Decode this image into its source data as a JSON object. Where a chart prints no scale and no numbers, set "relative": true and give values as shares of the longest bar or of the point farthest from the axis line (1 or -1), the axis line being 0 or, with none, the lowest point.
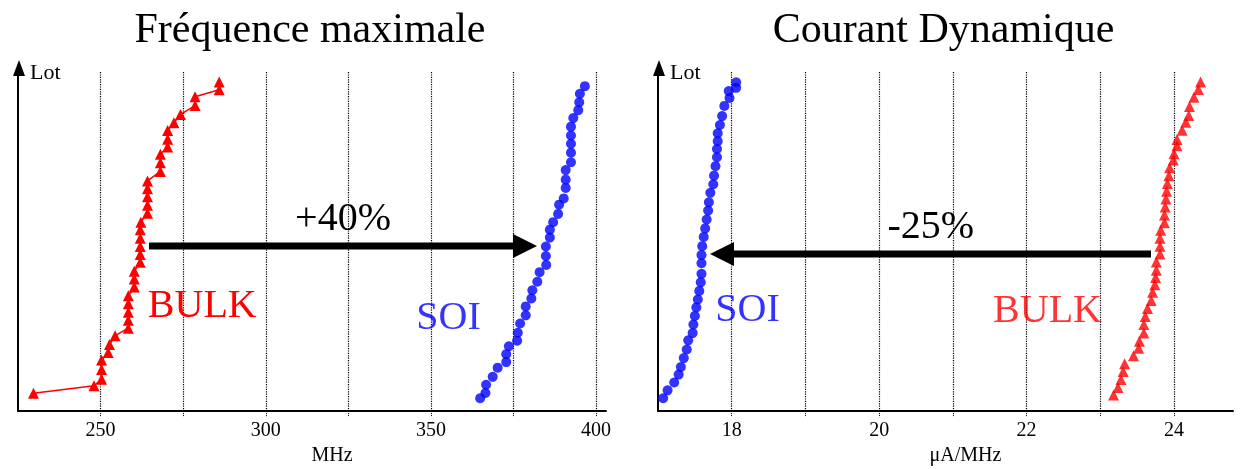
{
  "chart_data": [
    {
      "type": "scatter",
      "title": "Fréquence maximale",
      "xlabel": "MHz",
      "ylabel": "Lot",
      "relative": true,
      "legend": false,
      "grid": "x",
      "annotations": [
        "+40%"
      ],
      "xlim": [
        225,
        403
      ],
      "xticks": [
        250,
        {
          "value": 275,
          "label": null
        },
        300,
        {
          "value": 325,
          "label": null
        },
        350,
        {
          "value": 375,
          "label": null
        },
        400
      ],
      "series": [
        {
          "name": "BULK",
          "type": "line",
          "marker": "triangle",
          "color": "#ff0000",
          "x": [
            229.7,
            248.0,
            250.3,
            250.3,
            250.3,
            252.3,
            252.7,
            254.4,
            258.4,
            258.4,
            258.4,
            258.4,
            258.4,
            260.2,
            260.2,
            260.2,
            262.0,
            262.0,
            262.0,
            262.0,
            262.0,
            262.2,
            264.2,
            264.2,
            264.2,
            264.2,
            264.2,
            268.1,
            268.1,
            268.1,
            270.3,
            270.3,
            270.3,
            272.2,
            274.2,
            278.6,
            278.6,
            285.9,
            285.9
          ],
          "values": [
            0.054,
            0.077,
            0.097,
            0.126,
            0.155,
            0.178,
            0.202,
            0.229,
            0.252,
            0.276,
            0.3,
            0.326,
            0.35,
            0.377,
            0.401,
            0.425,
            0.452,
            0.476,
            0.5,
            0.525,
            0.551,
            0.574,
            0.601,
            0.625,
            0.651,
            0.675,
            0.699,
            0.728,
            0.754,
            0.78,
            0.802,
            0.826,
            0.852,
            0.876,
            0.901,
            0.928,
            0.955,
            0.976,
            1.0
          ]
        },
        {
          "name": "SOI",
          "type": "scatter",
          "marker": "circle",
          "color": "#0000ff",
          "x": [
            364.9,
            366.5,
            366.7,
            368.7,
            370.2,
            372.8,
            372.8,
            373.6,
            376.1,
            376.3,
            377.0,
            378.7,
            378.7,
            380.4,
            380.7,
            382.2,
            382.9,
            384.9,
            384.8,
            384.8,
            386.0,
            386.0,
            387.0,
            388.5,
            388.8,
            390.2,
            390.8,
            390.8,
            390.8,
            392.4,
            392.4,
            392.4,
            392.4,
            392.4,
            393.1,
            394.6,
            394.9,
            395.1,
            396.6
          ],
          "values": [
            0.039,
            0.055,
            0.08,
            0.104,
            0.132,
            0.149,
            0.173,
            0.197,
            0.214,
            0.238,
            0.266,
            0.291,
            0.318,
            0.342,
            0.367,
            0.393,
            0.422,
            0.444,
            0.471,
            0.5,
            0.527,
            0.551,
            0.574,
            0.599,
            0.627,
            0.646,
            0.678,
            0.703,
            0.732,
            0.756,
            0.785,
            0.812,
            0.837,
            0.864,
            0.89,
            0.914,
            0.938,
            0.964,
            0.987
          ]
        }
      ]
    },
    {
      "type": "scatter",
      "title": "Courant Dynamique",
      "xlabel": "μA/MHz",
      "ylabel": "Lot",
      "relative": true,
      "legend": false,
      "grid": "x",
      "annotations": [
        "-25%"
      ],
      "xlim": [
        17,
        24.8
      ],
      "xticks": [
        18,
        {
          "value": 19,
          "label": null
        },
        20,
        {
          "value": 21,
          "label": null
        },
        22,
        {
          "value": 23,
          "label": null
        },
        24
      ],
      "series": [
        {
          "name": "BULK",
          "type": "scatter",
          "marker": "triangle",
          "color": "#ff0000",
          "x": [
            23.18,
            23.24,
            23.28,
            23.31,
            23.33,
            23.45,
            23.52,
            23.53,
            23.59,
            23.59,
            23.61,
            23.64,
            23.69,
            23.71,
            23.74,
            23.75,
            23.76,
            23.76,
            23.81,
            23.81,
            23.81,
            23.82,
            23.87,
            23.87,
            23.88,
            23.89,
            23.9,
            23.91,
            23.93,
            23.94,
            23.99,
            24.0,
            24.04,
            24.04,
            24.11,
            24.16,
            24.2,
            24.21,
            24.27,
            24.33,
            24.36
          ],
          "values": [
            0.049,
            0.072,
            0.096,
            0.12,
            0.144,
            0.168,
            0.191,
            0.212,
            0.237,
            0.263,
            0.287,
            0.312,
            0.336,
            0.361,
            0.384,
            0.406,
            0.428,
            0.453,
            0.477,
            0.501,
            0.525,
            0.549,
            0.572,
            0.596,
            0.62,
            0.644,
            0.668,
            0.691,
            0.715,
            0.739,
            0.763,
            0.782,
            0.806,
            0.825,
            0.853,
            0.877,
            0.898,
            0.925,
            0.953,
            0.977,
            1.0
          ]
        },
        {
          "name": "SOI",
          "type": "scatter",
          "marker": "circle",
          "color": "#0000ff",
          "x": [
            17.07,
            17.13,
            17.22,
            17.28,
            17.31,
            17.35,
            17.39,
            17.41,
            17.47,
            17.48,
            17.5,
            17.52,
            17.54,
            17.56,
            17.58,
            17.59,
            17.59,
            17.59,
            17.6,
            17.62,
            17.64,
            17.66,
            17.68,
            17.69,
            17.71,
            17.75,
            17.76,
            17.78,
            17.8,
            17.8,
            17.81,
            17.81,
            17.84,
            17.87,
            17.9,
            17.97,
            17.96,
            18.06,
            18.06
          ],
          "values": [
            0.039,
            0.063,
            0.087,
            0.111,
            0.134,
            0.161,
            0.187,
            0.215,
            0.237,
            0.263,
            0.289,
            0.315,
            0.339,
            0.365,
            0.391,
            0.417,
            0.449,
            0.474,
            0.501,
            0.529,
            0.555,
            0.582,
            0.609,
            0.634,
            0.663,
            0.689,
            0.715,
            0.744,
            0.771,
            0.796,
            0.82,
            0.844,
            0.869,
            0.896,
            0.927,
            0.951,
            0.972,
            0.982,
            0.999
          ]
        }
      ]
    }
  ]
}
